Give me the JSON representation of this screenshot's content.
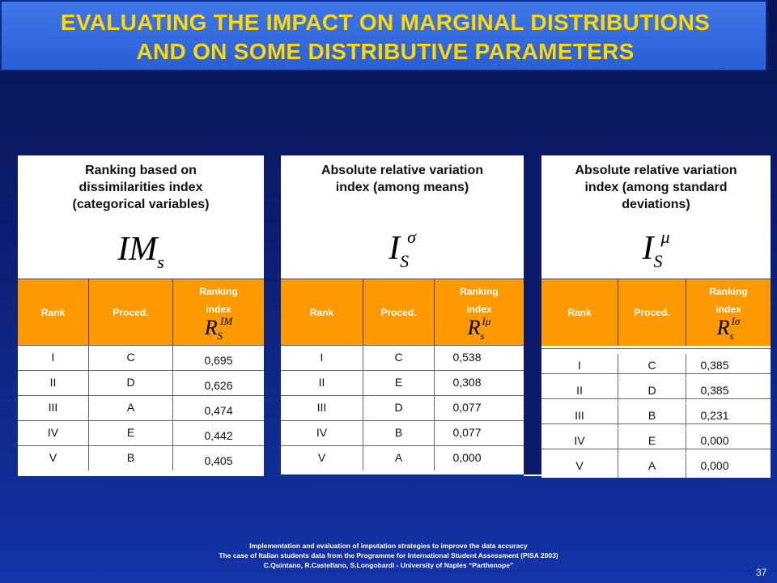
{
  "title": {
    "line1": "EVALUATING THE IMPACT ON MARGINAL DISTRIBUTIONS",
    "line2": "AND ON SOME DISTRIBUTIVE PARAMETERS"
  },
  "panels": [
    {
      "heading_lines": [
        "Ranking based on",
        "dissimilarities index",
        "(categorical variables)"
      ],
      "formula": {
        "main": "IM",
        "sub": "s",
        "sup": ""
      },
      "columns": {
        "rank": "Rank",
        "proc": "Proced.",
        "index_l1": "Ranking",
        "index_l2": "index"
      },
      "index_formula": {
        "main": "R",
        "sub": "S",
        "sup": "IM"
      },
      "rows": [
        {
          "rank": "I",
          "proc": "C",
          "value": "0,695"
        },
        {
          "rank": "II",
          "proc": "D",
          "value": "0,626"
        },
        {
          "rank": "III",
          "proc": "A",
          "value": "0,474"
        },
        {
          "rank": "IV",
          "proc": "E",
          "value": "0,442"
        },
        {
          "rank": "V",
          "proc": "B",
          "value": "0,405"
        }
      ]
    },
    {
      "heading_lines": [
        "Absolute relative variation",
        "index (among means)"
      ],
      "formula": {
        "main": "I",
        "sub": "S",
        "sup": "σ"
      },
      "columns": {
        "rank": "Rank",
        "proc": "Proced.",
        "index_l1": "Ranking",
        "index_l2": "index"
      },
      "index_formula": {
        "main": "R",
        "sub": "s",
        "sup": "Iμ"
      },
      "rows": [
        {
          "rank": "I",
          "proc": "C",
          "value": "0,538"
        },
        {
          "rank": "II",
          "proc": "E",
          "value": "0,308"
        },
        {
          "rank": "III",
          "proc": "D",
          "value": "0,077"
        },
        {
          "rank": "IV",
          "proc": "B",
          "value": "0,077"
        },
        {
          "rank": "V",
          "proc": "A",
          "value": "0,000"
        }
      ]
    },
    {
      "heading_lines": [
        "Absolute relative variation",
        "index (among standard",
        "deviations)"
      ],
      "formula": {
        "main": "I",
        "sub": "S",
        "sup": "μ"
      },
      "columns": {
        "rank": "Rank",
        "proc": "Proced.",
        "index_l1": "Ranking",
        "index_l2": "index"
      },
      "index_formula": {
        "main": "R",
        "sub": "s",
        "sup": "Iσ"
      },
      "rows": [
        {
          "rank": "I",
          "proc": "C",
          "value": "0,385"
        },
        {
          "rank": "II",
          "proc": "D",
          "value": "0,385"
        },
        {
          "rank": "III",
          "proc": "B",
          "value": "0,231"
        },
        {
          "rank": "IV",
          "proc": "E",
          "value": "0,000"
        },
        {
          "rank": "V",
          "proc": "A",
          "value": "0,000"
        }
      ]
    }
  ],
  "footer": {
    "line1": "Implementation and evaluation of imputation strategies to improve the data accuracy",
    "line2": "The case of Italian students data from the Programme for International Student Assessment (PISA 2003)",
    "line3": "C.Quintano, R.Castellano, S.Longobardi - University of Naples “Parthenope”"
  },
  "page_number": "37"
}
